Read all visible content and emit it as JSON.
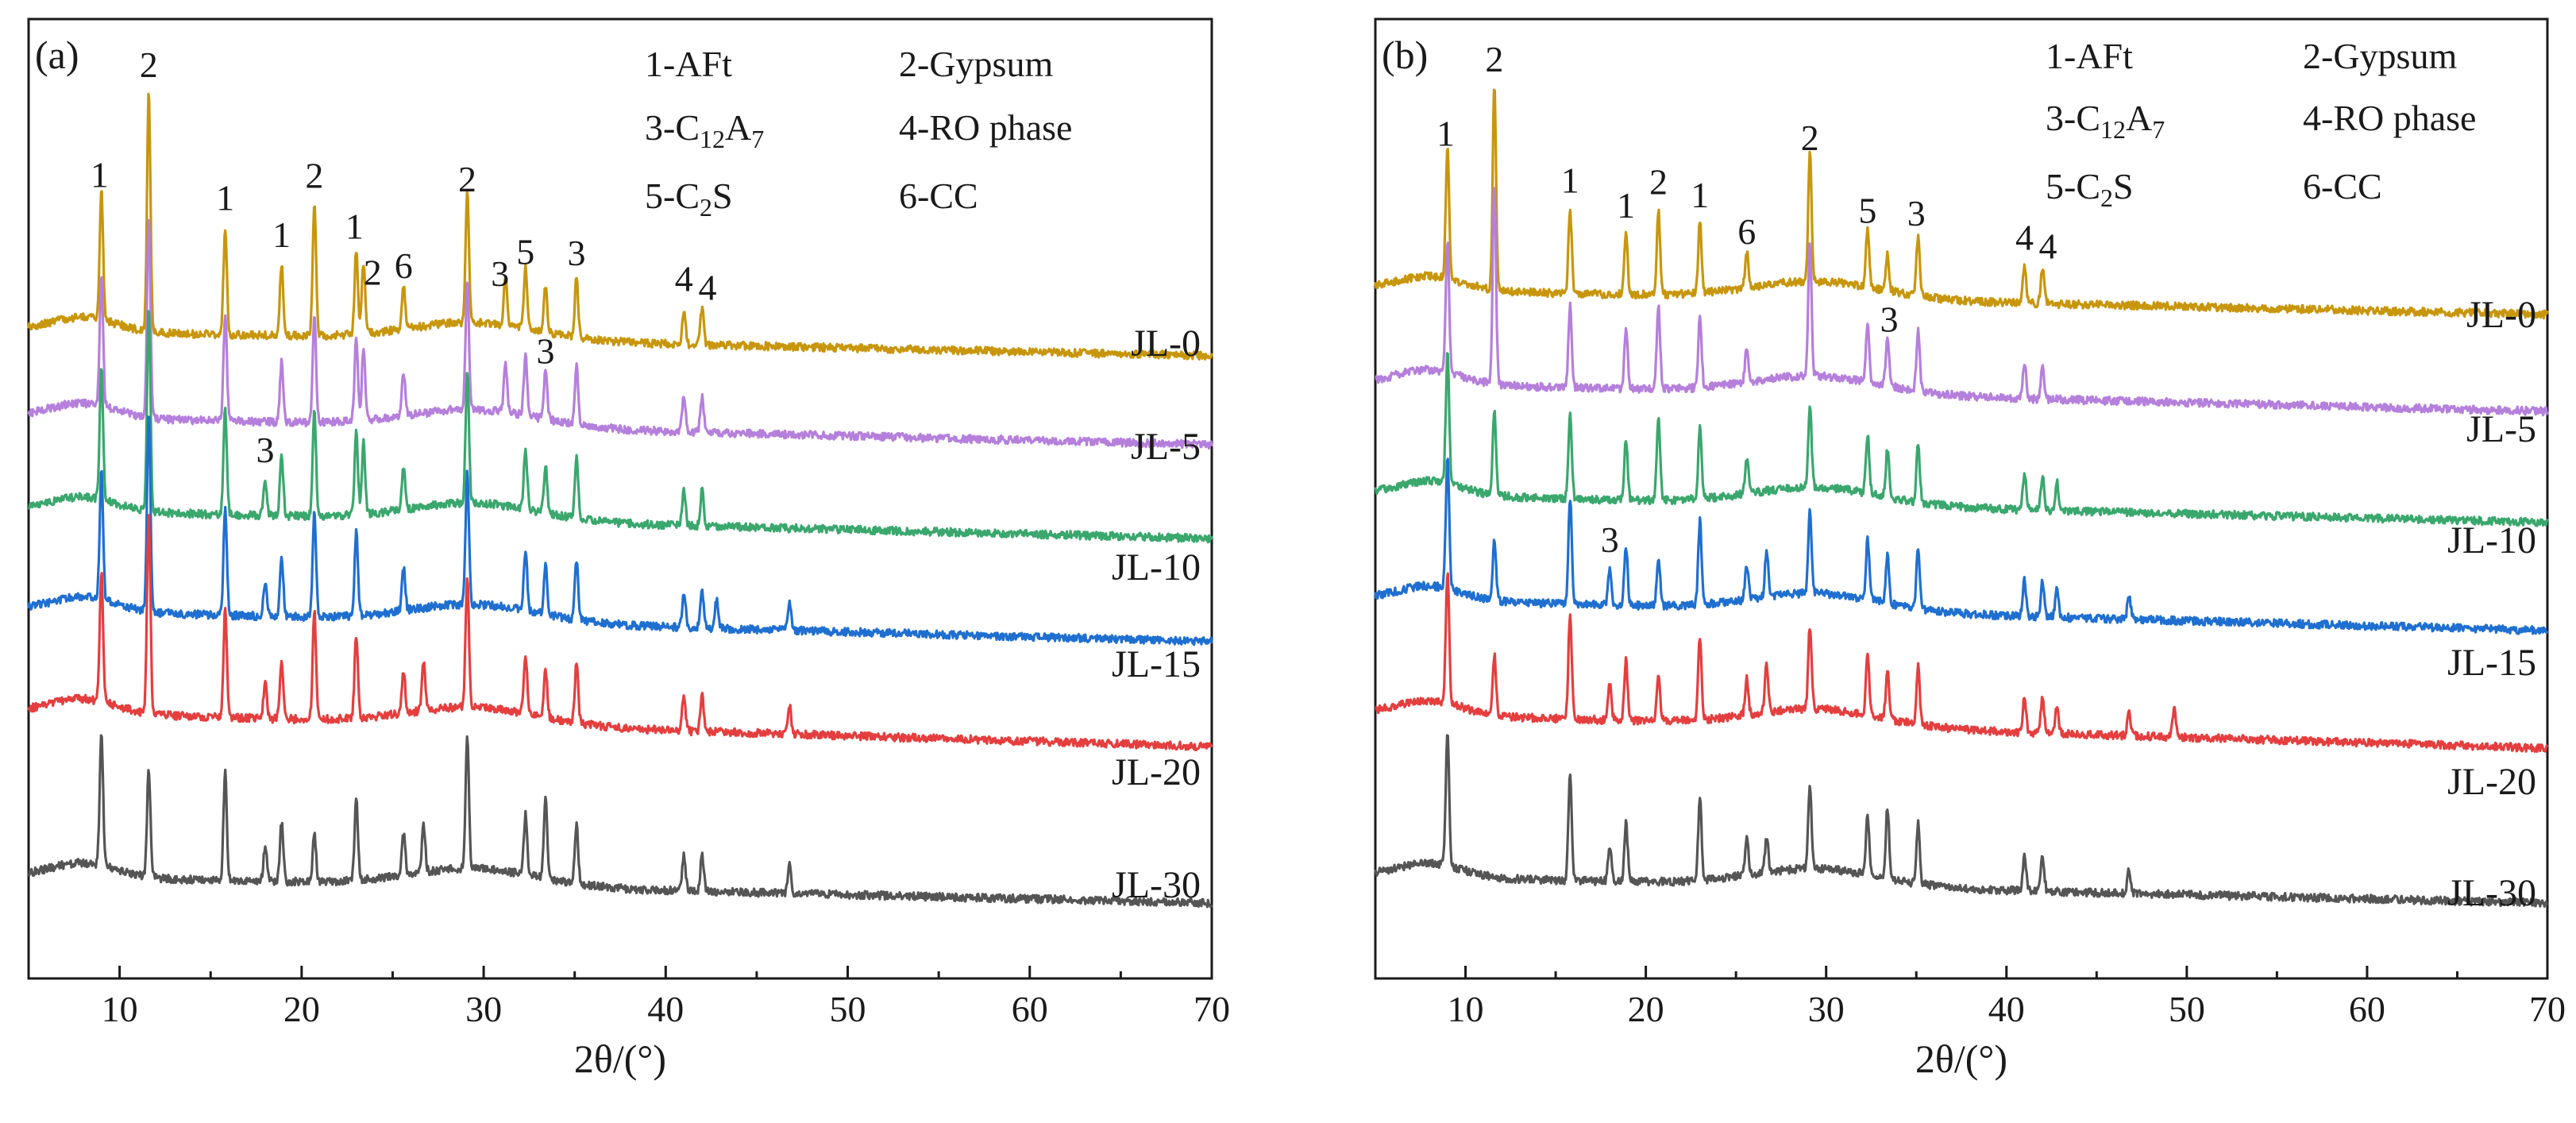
{
  "chart_data": [
    {
      "type": "line",
      "panel_label": "(a)",
      "xlabel": "2θ/(°)",
      "xlim": [
        5,
        70
      ],
      "xticks": [
        "10",
        "20",
        "30",
        "40",
        "50",
        "60",
        "70"
      ],
      "legend": [
        {
          "text": "1-AFt"
        },
        {
          "text": "2-Gypsum"
        },
        {
          "text": "3-C",
          "sub": "12",
          "text2": "A",
          "sub2": "7"
        },
        {
          "text": "4-RO phase"
        },
        {
          "text": "5-C",
          "sub": "2",
          "text2": "S"
        },
        {
          "text": "6-CC"
        }
      ],
      "series": [
        {
          "name": "JL-0",
          "color": "#c8960c",
          "peaks": [
            [
              9.0,
              0.55
            ],
            [
              11.6,
              1.0
            ],
            [
              15.8,
              0.45
            ],
            [
              18.9,
              0.3
            ],
            [
              20.7,
              0.55
            ],
            [
              23.0,
              0.35
            ],
            [
              23.4,
              0.3
            ],
            [
              25.6,
              0.18
            ],
            [
              29.1,
              0.55
            ],
            [
              31.2,
              0.2
            ],
            [
              32.3,
              0.25
            ],
            [
              33.4,
              0.2
            ],
            [
              35.1,
              0.25
            ],
            [
              41.0,
              0.15
            ],
            [
              42.0,
              0.15
            ]
          ]
        },
        {
          "name": "JL-5",
          "color": "#b57fdc",
          "peaks": [
            [
              9.0,
              0.55
            ],
            [
              11.6,
              0.85
            ],
            [
              15.8,
              0.45
            ],
            [
              18.9,
              0.25
            ],
            [
              20.7,
              0.45
            ],
            [
              23.0,
              0.35
            ],
            [
              23.4,
              0.3
            ],
            [
              25.6,
              0.18
            ],
            [
              29.1,
              0.55
            ],
            [
              31.2,
              0.2
            ],
            [
              32.3,
              0.25
            ],
            [
              33.4,
              0.2
            ],
            [
              35.1,
              0.25
            ],
            [
              41.0,
              0.15
            ],
            [
              42.0,
              0.15
            ]
          ]
        },
        {
          "name": "JL-10",
          "color": "#3aa76d",
          "peaks": [
            [
              9.0,
              0.55
            ],
            [
              11.6,
              0.85
            ],
            [
              15.8,
              0.45
            ],
            [
              18.0,
              0.15
            ],
            [
              18.9,
              0.25
            ],
            [
              20.7,
              0.45
            ],
            [
              23.0,
              0.35
            ],
            [
              23.4,
              0.3
            ],
            [
              25.6,
              0.18
            ],
            [
              29.1,
              0.55
            ],
            [
              32.3,
              0.25
            ],
            [
              33.4,
              0.2
            ],
            [
              35.1,
              0.25
            ],
            [
              41.0,
              0.15
            ],
            [
              42.0,
              0.15
            ]
          ]
        },
        {
          "name": "JL-15",
          "color": "#1f6fd1",
          "peaks": [
            [
              9.0,
              0.55
            ],
            [
              11.6,
              0.85
            ],
            [
              15.8,
              0.45
            ],
            [
              18.0,
              0.15
            ],
            [
              18.9,
              0.25
            ],
            [
              20.7,
              0.45
            ],
            [
              23.0,
              0.35
            ],
            [
              25.6,
              0.18
            ],
            [
              29.1,
              0.55
            ],
            [
              32.3,
              0.25
            ],
            [
              33.4,
              0.2
            ],
            [
              35.1,
              0.25
            ],
            [
              41.0,
              0.15
            ],
            [
              42.0,
              0.15
            ],
            [
              42.8,
              0.12
            ],
            [
              46.8,
              0.12
            ]
          ]
        },
        {
          "name": "JL-20",
          "color": "#e53e3e",
          "peaks": [
            [
              9.0,
              0.55
            ],
            [
              11.6,
              0.85
            ],
            [
              15.8,
              0.45
            ],
            [
              18.0,
              0.15
            ],
            [
              18.9,
              0.25
            ],
            [
              20.7,
              0.45
            ],
            [
              23.0,
              0.35
            ],
            [
              25.6,
              0.18
            ],
            [
              26.7,
              0.2
            ],
            [
              29.1,
              0.55
            ],
            [
              32.3,
              0.25
            ],
            [
              33.4,
              0.2
            ],
            [
              35.1,
              0.25
            ],
            [
              41.0,
              0.15
            ],
            [
              42.0,
              0.15
            ],
            [
              46.8,
              0.12
            ]
          ]
        },
        {
          "name": "JL-30",
          "color": "#555555",
          "peaks": [
            [
              9.0,
              0.55
            ],
            [
              11.6,
              0.45
            ],
            [
              15.8,
              0.45
            ],
            [
              18.0,
              0.15
            ],
            [
              18.9,
              0.25
            ],
            [
              20.7,
              0.2
            ],
            [
              23.0,
              0.35
            ],
            [
              25.6,
              0.18
            ],
            [
              26.7,
              0.2
            ],
            [
              29.1,
              0.55
            ],
            [
              32.3,
              0.25
            ],
            [
              33.4,
              0.35
            ],
            [
              35.1,
              0.25
            ],
            [
              41.0,
              0.15
            ],
            [
              42.0,
              0.15
            ],
            [
              46.8,
              0.12
            ]
          ]
        }
      ],
      "annotations": [
        {
          "text": "1",
          "x": 8.9,
          "series": "JL-0"
        },
        {
          "text": "2",
          "x": 11.6,
          "series": "JL-0"
        },
        {
          "text": "1",
          "x": 15.8,
          "series": "JL-0"
        },
        {
          "text": "1",
          "x": 18.9,
          "series": "JL-0"
        },
        {
          "text": "2",
          "x": 20.7,
          "series": "JL-0"
        },
        {
          "text": "1",
          "x": 22.9,
          "series": "JL-0"
        },
        {
          "text": "2",
          "x": 23.9,
          "series": "JL-0"
        },
        {
          "text": "6",
          "x": 25.6,
          "series": "JL-0"
        },
        {
          "text": "2",
          "x": 29.1,
          "series": "JL-0"
        },
        {
          "text": "3",
          "x": 30.9,
          "series": "JL-0"
        },
        {
          "text": "5",
          "x": 32.3,
          "series": "JL-0"
        },
        {
          "text": "3",
          "x": 35.1,
          "series": "JL-0"
        },
        {
          "text": "4",
          "x": 41.0,
          "series": "JL-0"
        },
        {
          "text": "4",
          "x": 42.3,
          "series": "JL-0"
        },
        {
          "text": "3",
          "x": 33.4,
          "series": "JL-5"
        },
        {
          "text": "3",
          "x": 18.0,
          "series": "JL-10"
        }
      ]
    },
    {
      "type": "line",
      "panel_label": "(b)",
      "xlabel": "2θ/(°)",
      "xlim": [
        5,
        70
      ],
      "xticks": [
        "10",
        "20",
        "30",
        "40",
        "50",
        "60",
        "70"
      ],
      "legend": [
        {
          "text": "1-AFt"
        },
        {
          "text": "2-Gypsum"
        },
        {
          "text": "3-C",
          "sub": "12",
          "text2": "A",
          "sub2": "7"
        },
        {
          "text": "4-RO phase"
        },
        {
          "text": "5-C",
          "sub": "2",
          "text2": "S"
        },
        {
          "text": "6-CC"
        }
      ],
      "series": [
        {
          "name": "JL-0",
          "color": "#c8960c",
          "peaks": [
            [
              9.0,
              0.55
            ],
            [
              11.6,
              0.85
            ],
            [
              15.8,
              0.35
            ],
            [
              18.9,
              0.25
            ],
            [
              20.7,
              0.35
            ],
            [
              23.0,
              0.3
            ],
            [
              25.6,
              0.15
            ],
            [
              29.1,
              0.55
            ],
            [
              32.3,
              0.25
            ],
            [
              33.4,
              0.15
            ],
            [
              35.1,
              0.25
            ],
            [
              41.0,
              0.15
            ],
            [
              42.0,
              0.15
            ]
          ]
        },
        {
          "name": "JL-5",
          "color": "#b57fdc",
          "peaks": [
            [
              9.0,
              0.55
            ],
            [
              11.6,
              0.85
            ],
            [
              15.8,
              0.35
            ],
            [
              18.9,
              0.25
            ],
            [
              20.7,
              0.35
            ],
            [
              23.0,
              0.3
            ],
            [
              25.6,
              0.15
            ],
            [
              29.1,
              0.55
            ],
            [
              32.3,
              0.25
            ],
            [
              33.4,
              0.2
            ],
            [
              35.1,
              0.25
            ],
            [
              41.0,
              0.15
            ],
            [
              42.0,
              0.15
            ]
          ]
        },
        {
          "name": "JL-10",
          "color": "#3aa76d",
          "peaks": [
            [
              9.0,
              0.55
            ],
            [
              11.6,
              0.35
            ],
            [
              15.8,
              0.35
            ],
            [
              18.9,
              0.25
            ],
            [
              20.7,
              0.35
            ],
            [
              23.0,
              0.3
            ],
            [
              25.6,
              0.15
            ],
            [
              29.1,
              0.35
            ],
            [
              32.3,
              0.25
            ],
            [
              33.4,
              0.2
            ],
            [
              35.1,
              0.25
            ],
            [
              41.0,
              0.15
            ],
            [
              42.0,
              0.15
            ],
            [
              42.8,
              0.12
            ]
          ]
        },
        {
          "name": "JL-15",
          "color": "#1f6fd1",
          "peaks": [
            [
              9.0,
              0.55
            ],
            [
              11.6,
              0.25
            ],
            [
              15.8,
              0.45
            ],
            [
              18.0,
              0.15
            ],
            [
              18.9,
              0.25
            ],
            [
              20.7,
              0.2
            ],
            [
              23.0,
              0.35
            ],
            [
              25.6,
              0.15
            ],
            [
              26.7,
              0.2
            ],
            [
              29.1,
              0.35
            ],
            [
              32.3,
              0.25
            ],
            [
              33.4,
              0.2
            ],
            [
              35.1,
              0.25
            ],
            [
              41.0,
              0.15
            ],
            [
              42.0,
              0.15
            ],
            [
              42.8,
              0.12
            ],
            [
              46.8,
              0.1
            ]
          ]
        },
        {
          "name": "JL-20",
          "color": "#e53e3e",
          "peaks": [
            [
              9.0,
              0.55
            ],
            [
              11.6,
              0.25
            ],
            [
              15.8,
              0.45
            ],
            [
              18.0,
              0.15
            ],
            [
              18.9,
              0.25
            ],
            [
              20.7,
              0.2
            ],
            [
              23.0,
              0.35
            ],
            [
              25.6,
              0.15
            ],
            [
              26.7,
              0.2
            ],
            [
              29.1,
              0.35
            ],
            [
              32.3,
              0.25
            ],
            [
              33.4,
              0.2
            ],
            [
              35.1,
              0.25
            ],
            [
              41.0,
              0.15
            ],
            [
              42.0,
              0.15
            ],
            [
              42.8,
              0.12
            ],
            [
              46.8,
              0.1
            ],
            [
              49.3,
              0.12
            ]
          ]
        },
        {
          "name": "JL-30",
          "color": "#555555",
          "peaks": [
            [
              9.0,
              0.55
            ],
            [
              15.8,
              0.45
            ],
            [
              18.0,
              0.15
            ],
            [
              18.9,
              0.25
            ],
            [
              23.0,
              0.35
            ],
            [
              25.6,
              0.15
            ],
            [
              26.7,
              0.15
            ],
            [
              29.1,
              0.35
            ],
            [
              32.3,
              0.25
            ],
            [
              33.4,
              0.3
            ],
            [
              35.1,
              0.25
            ],
            [
              41.0,
              0.15
            ],
            [
              42.0,
              0.15
            ],
            [
              46.8,
              0.1
            ]
          ]
        }
      ],
      "annotations": [
        {
          "text": "1",
          "x": 8.9,
          "series": "JL-0"
        },
        {
          "text": "2",
          "x": 11.6,
          "series": "JL-0"
        },
        {
          "text": "1",
          "x": 15.8,
          "series": "JL-0"
        },
        {
          "text": "1",
          "x": 18.9,
          "series": "JL-0"
        },
        {
          "text": "2",
          "x": 20.7,
          "series": "JL-0"
        },
        {
          "text": "1",
          "x": 23.0,
          "series": "JL-0"
        },
        {
          "text": "6",
          "x": 25.6,
          "series": "JL-0"
        },
        {
          "text": "2",
          "x": 29.1,
          "series": "JL-0"
        },
        {
          "text": "5",
          "x": 32.3,
          "series": "JL-0"
        },
        {
          "text": "3",
          "x": 35.0,
          "series": "JL-0"
        },
        {
          "text": "4",
          "x": 41.0,
          "series": "JL-0"
        },
        {
          "text": "4",
          "x": 42.3,
          "series": "JL-0"
        },
        {
          "text": "3",
          "x": 33.5,
          "series": "JL-5"
        },
        {
          "text": "3",
          "x": 18.0,
          "series": "JL-15"
        }
      ]
    }
  ]
}
